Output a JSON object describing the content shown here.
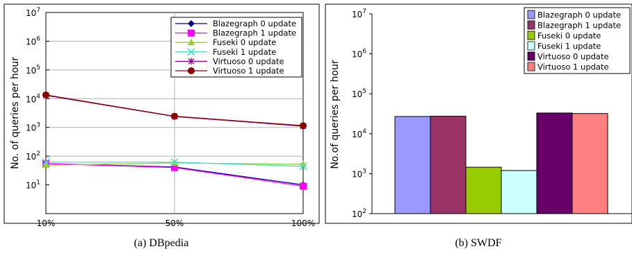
{
  "chart_data": [
    {
      "type": "line",
      "caption": "(a) DBpedia",
      "ylabel": "No. of queries per hour",
      "yscale": "log",
      "ylim": [
        1,
        10000000
      ],
      "y_ticks": [
        {
          "value": 1,
          "base": "10",
          "exp": "1"
        },
        {
          "value": 2,
          "base": "10",
          "exp": "2"
        },
        {
          "value": 3,
          "base": "10",
          "exp": "3"
        },
        {
          "value": 4,
          "base": "10",
          "exp": "4"
        },
        {
          "value": 5,
          "base": "10",
          "exp": "5"
        },
        {
          "value": 6,
          "base": "10",
          "exp": "6"
        },
        {
          "value": 7,
          "base": "10",
          "exp": "7"
        }
      ],
      "categories": [
        "10%",
        "50%",
        "100%"
      ],
      "grid": true,
      "legend_position": "top-right",
      "series": [
        {
          "name": "Blazegraph 0 update",
          "color": "#00008b",
          "marker": "diamond",
          "values": [
            55,
            42,
            10
          ]
        },
        {
          "name": "Blazegraph 1 update",
          "color": "#ff00ff",
          "marker": "square",
          "values": [
            55,
            40,
            9
          ]
        },
        {
          "name": "Fuseki 0 update",
          "color": "#9acd32",
          "marker": "triangle",
          "values": [
            48,
            58,
            52
          ]
        },
        {
          "name": "Fuseki 1 update",
          "color": "#40e0d0",
          "marker": "x",
          "values": [
            62,
            62,
            44
          ]
        },
        {
          "name": "Virtuoso 0 update",
          "color": "#8b008b",
          "marker": "star",
          "values": [
            13000,
            2400,
            1100
          ]
        },
        {
          "name": "Virtuoso 1 update",
          "color": "#8b0000",
          "marker": "circle",
          "values": [
            13500,
            2450,
            1150
          ]
        }
      ]
    },
    {
      "type": "bar",
      "caption": "(b) SWDF",
      "ylabel": "No.of queries per hour",
      "yscale": "log",
      "ylim": [
        100,
        10000000
      ],
      "y_ticks": [
        {
          "value": 2,
          "base": "10",
          "exp": "2"
        },
        {
          "value": 3,
          "base": "10",
          "exp": "3"
        },
        {
          "value": 4,
          "base": "10",
          "exp": "4"
        },
        {
          "value": 5,
          "base": "10",
          "exp": "5"
        },
        {
          "value": 6,
          "base": "10",
          "exp": "6"
        },
        {
          "value": 7,
          "base": "10",
          "exp": "7"
        }
      ],
      "grid": false,
      "legend_position": "top-right",
      "series": [
        {
          "name": "Blazegraph 0 update",
          "color": "#9999ff",
          "value": 27000
        },
        {
          "name": "Blazegraph 1 update",
          "color": "#993366",
          "value": 27500
        },
        {
          "name": "Fuseki 0 update",
          "color": "#99cc00",
          "value": 1450
        },
        {
          "name": "Fuseki 1 update",
          "color": "#ccffff",
          "value": 1200
        },
        {
          "name": "Virtuoso 0 update",
          "color": "#660066",
          "value": 33000
        },
        {
          "name": "Virtuoso 1 update",
          "color": "#ff8080",
          "value": 32000
        }
      ]
    }
  ]
}
